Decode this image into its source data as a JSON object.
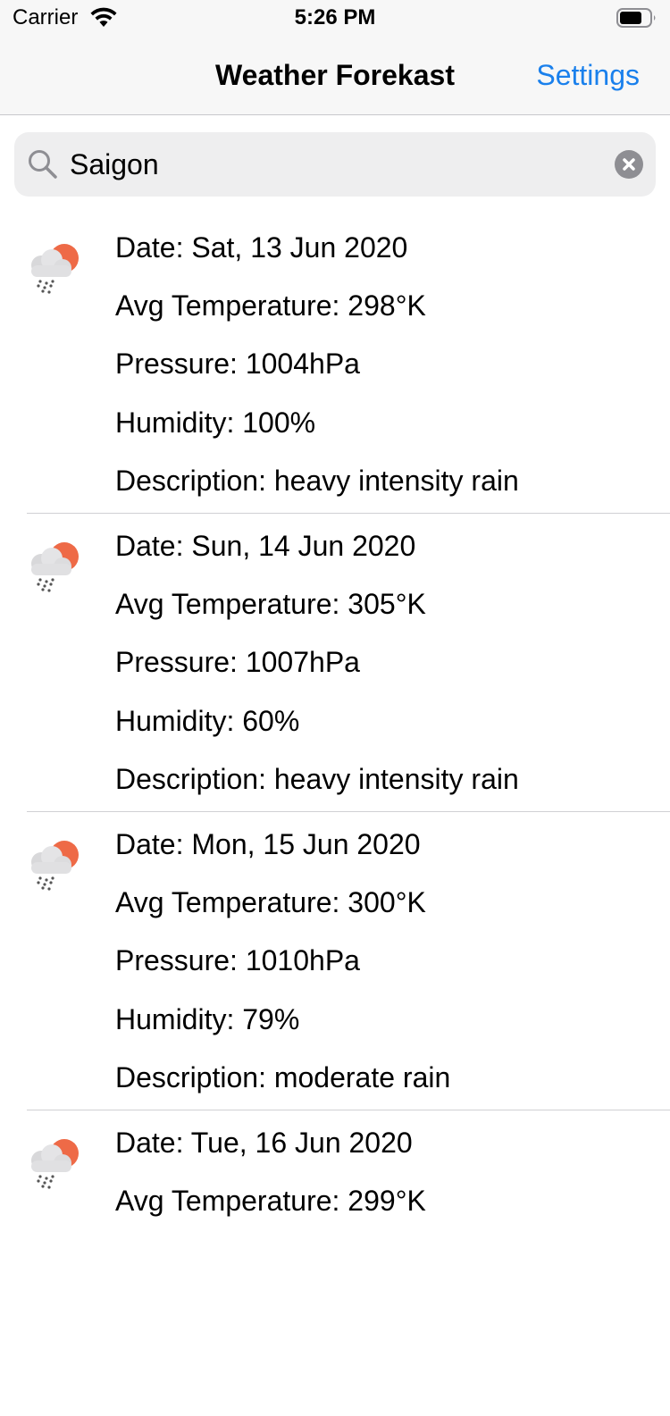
{
  "status_bar": {
    "carrier": "Carrier",
    "time": "5:26 PM"
  },
  "nav": {
    "title": "Weather Forekast",
    "settings_label": "Settings",
    "accent_color": "#1a80ec"
  },
  "search": {
    "value": "Saigon"
  },
  "forecasts": [
    {
      "date": "Date: Sat, 13 Jun 2020",
      "temperature": "Avg Temperature: 298°K",
      "pressure": "Pressure: 1004hPa",
      "humidity": "Humidity: 100%",
      "description": "Description: heavy intensity rain",
      "icon": "rain-sun-cloud-icon"
    },
    {
      "date": "Date: Sun, 14 Jun 2020",
      "temperature": "Avg Temperature: 305°K",
      "pressure": "Pressure: 1007hPa",
      "humidity": "Humidity: 60%",
      "description": "Description: heavy intensity rain",
      "icon": "rain-sun-cloud-icon"
    },
    {
      "date": "Date: Mon, 15 Jun 2020",
      "temperature": "Avg Temperature: 300°K",
      "pressure": "Pressure: 1010hPa",
      "humidity": "Humidity: 79%",
      "description": "Description: moderate rain",
      "icon": "rain-sun-cloud-icon"
    },
    {
      "date": "Date: Tue, 16 Jun 2020",
      "temperature": "Avg Temperature: 299°K",
      "pressure": "",
      "humidity": "",
      "description": "",
      "icon": "rain-sun-cloud-icon"
    }
  ]
}
